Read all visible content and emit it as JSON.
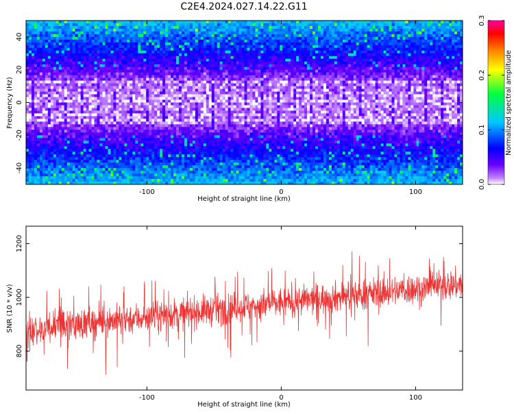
{
  "title": "C2E4.2024.027.14.22.G11",
  "chart_data": [
    {
      "type": "heatmap",
      "xlabel": "Height of straight line (km)",
      "ylabel": "Frequency (Hz)",
      "xlim": [
        -190,
        135
      ],
      "ylim": [
        -50,
        50
      ],
      "xticks": [
        "-100",
        "0",
        "100"
      ],
      "xtick_values": [
        -100,
        0,
        100
      ],
      "yticks": [
        "40",
        "20",
        "0",
        "-20",
        "-40"
      ],
      "ytick_values": [
        40,
        20,
        0,
        -20,
        -40
      ],
      "description_pattern": "bright (low amplitude) band centred near 0 Hz between about -15 and 15 Hz; higher amplitudes (blue/cyan/green) towards +/-50 Hz",
      "colorbar": {
        "label": "Normalized spectral amplitude",
        "range": [
          0.0,
          0.3
        ],
        "ticks": [
          "0.0",
          "0.1",
          "0.2",
          "0.3"
        ],
        "tick_values": [
          0.0,
          0.1,
          0.2,
          0.3
        ],
        "colormap": [
          "#ffffff",
          "#c080ff",
          "#6a00ff",
          "#0000ff",
          "#00c8ff",
          "#00ff40",
          "#ffff00",
          "#ff8000",
          "#ff0000",
          "#ff00a0"
        ]
      },
      "grid": false
    },
    {
      "type": "line",
      "xlabel": "Height of straight line (km)",
      "ylabel": "SNR (10 * v/v)",
      "xlim": [
        -190,
        135
      ],
      "ylim": [
        655,
        1265
      ],
      "xticks": [
        "-100",
        "0",
        "100"
      ],
      "xtick_values": [
        -100,
        0,
        100
      ],
      "yticks": [
        "1200",
        "1000",
        "800"
      ],
      "ytick_values": [
        1200,
        1000,
        800
      ],
      "series": [
        {
          "color": "#ee3333",
          "trend": {
            "x": [
              -190,
              135
            ],
            "y": [
              880,
              1050
            ]
          },
          "spread": 70
        }
      ],
      "grid": false
    }
  ]
}
